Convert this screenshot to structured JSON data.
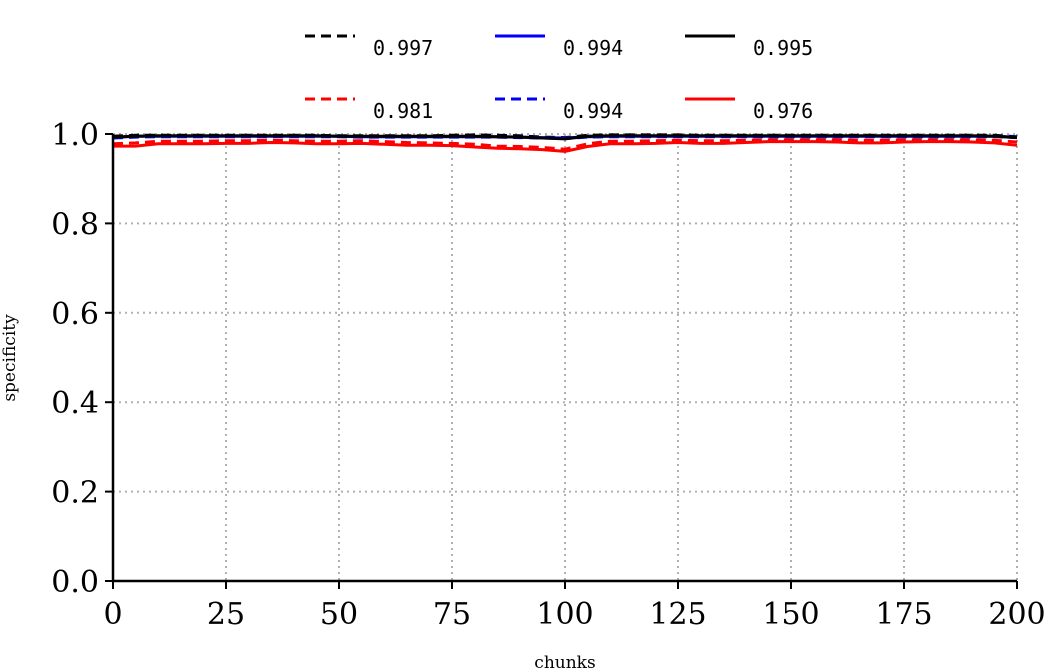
{
  "chart_data": {
    "type": "line",
    "xlabel": "chunks",
    "ylabel": "specificity",
    "xlim": [
      0,
      200
    ],
    "ylim": [
      0,
      1.0
    ],
    "xticks": [
      "0",
      "25",
      "50",
      "75",
      "100",
      "125",
      "150",
      "175",
      "200"
    ],
    "yticks": [
      "0.0",
      "0.2",
      "0.4",
      "0.6",
      "0.8",
      "1.0"
    ],
    "grid": true,
    "legend_position": "top",
    "x": [
      0,
      5,
      10,
      15,
      20,
      25,
      30,
      35,
      40,
      45,
      50,
      55,
      60,
      65,
      70,
      75,
      80,
      85,
      90,
      95,
      100,
      105,
      110,
      115,
      120,
      125,
      130,
      135,
      140,
      145,
      150,
      155,
      160,
      165,
      170,
      175,
      180,
      185,
      190,
      195,
      200
    ],
    "series": [
      {
        "name": "0.997",
        "color": "#000000",
        "dash": true,
        "values": [
          0.995,
          0.997,
          0.997,
          0.997,
          0.997,
          0.997,
          0.997,
          0.997,
          0.997,
          0.997,
          0.996,
          0.996,
          0.996,
          0.996,
          0.996,
          0.997,
          0.998,
          0.997,
          0.996,
          0.993,
          0.992,
          0.997,
          0.998,
          0.998,
          0.998,
          0.998,
          0.997,
          0.997,
          0.997,
          0.997,
          0.997,
          0.997,
          0.997,
          0.997,
          0.997,
          0.997,
          0.997,
          0.997,
          0.997,
          0.997,
          0.994
        ]
      },
      {
        "name": "0.981",
        "color": "#ff0000",
        "dash": true,
        "values": [
          0.978,
          0.98,
          0.984,
          0.984,
          0.984,
          0.985,
          0.985,
          0.986,
          0.985,
          0.984,
          0.984,
          0.985,
          0.983,
          0.981,
          0.98,
          0.979,
          0.977,
          0.973,
          0.972,
          0.97,
          0.966,
          0.978,
          0.984,
          0.984,
          0.985,
          0.986,
          0.985,
          0.985,
          0.986,
          0.987,
          0.987,
          0.987,
          0.987,
          0.986,
          0.986,
          0.987,
          0.987,
          0.987,
          0.987,
          0.986,
          0.982
        ]
      },
      {
        "name": "0.994",
        "color": "#0000ff",
        "dash": false,
        "values": [
          0.992,
          0.995,
          0.995,
          0.995,
          0.995,
          0.995,
          0.995,
          0.995,
          0.995,
          0.995,
          0.995,
          0.994,
          0.994,
          0.994,
          0.994,
          0.994,
          0.994,
          0.994,
          0.993,
          0.992,
          0.991,
          0.994,
          0.995,
          0.995,
          0.995,
          0.995,
          0.995,
          0.995,
          0.995,
          0.995,
          0.995,
          0.995,
          0.995,
          0.995,
          0.995,
          0.995,
          0.995,
          0.995,
          0.995,
          0.995,
          0.993
        ]
      },
      {
        "name": "0.994",
        "color": "#0000ff",
        "dash": true,
        "values": [
          0.991,
          0.993,
          0.994,
          0.994,
          0.994,
          0.994,
          0.994,
          0.994,
          0.994,
          0.994,
          0.994,
          0.993,
          0.993,
          0.993,
          0.993,
          0.993,
          0.993,
          0.993,
          0.992,
          0.991,
          0.99,
          0.993,
          0.994,
          0.994,
          0.994,
          0.994,
          0.994,
          0.994,
          0.994,
          0.994,
          0.994,
          0.994,
          0.994,
          0.994,
          0.994,
          0.994,
          0.994,
          0.994,
          0.994,
          0.994,
          0.992
        ]
      },
      {
        "name": "0.995",
        "color": "#000000",
        "dash": false,
        "values": [
          0.993,
          0.995,
          0.996,
          0.996,
          0.996,
          0.996,
          0.996,
          0.996,
          0.996,
          0.996,
          0.995,
          0.995,
          0.995,
          0.995,
          0.995,
          0.995,
          0.995,
          0.994,
          0.993,
          0.991,
          0.989,
          0.995,
          0.996,
          0.996,
          0.996,
          0.996,
          0.996,
          0.996,
          0.996,
          0.996,
          0.996,
          0.996,
          0.996,
          0.996,
          0.996,
          0.996,
          0.996,
          0.996,
          0.996,
          0.995,
          0.992
        ]
      },
      {
        "name": "0.976",
        "color": "#ff0000",
        "dash": false,
        "values": [
          0.973,
          0.973,
          0.978,
          0.978,
          0.978,
          0.979,
          0.979,
          0.981,
          0.98,
          0.978,
          0.978,
          0.979,
          0.977,
          0.975,
          0.975,
          0.974,
          0.971,
          0.968,
          0.967,
          0.965,
          0.961,
          0.972,
          0.978,
          0.978,
          0.979,
          0.981,
          0.979,
          0.979,
          0.981,
          0.983,
          0.983,
          0.983,
          0.982,
          0.98,
          0.98,
          0.982,
          0.983,
          0.983,
          0.982,
          0.98,
          0.975
        ]
      }
    ]
  }
}
